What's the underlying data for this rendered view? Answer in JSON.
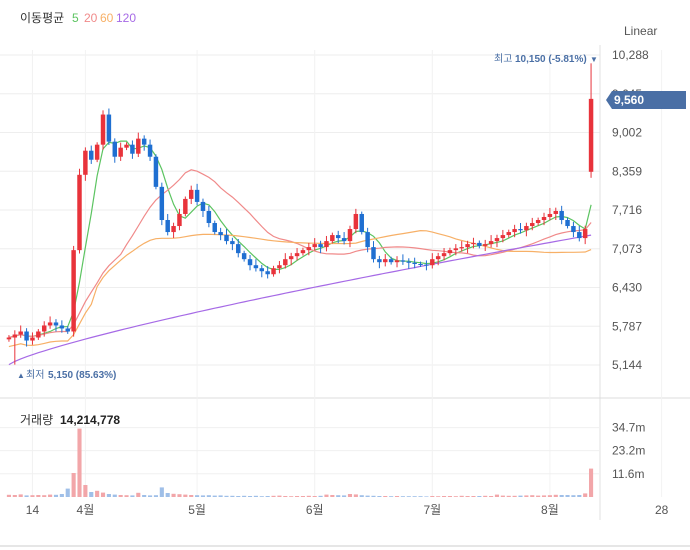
{
  "header": {
    "ma_title": "이동평균",
    "ma_periods": [
      "5",
      "20",
      "60",
      "120"
    ],
    "scale_label": "Linear"
  },
  "colors": {
    "up": "#e8333b",
    "down": "#1f6fd1",
    "ma5": "#5cc461",
    "ma20": "#f08a8a",
    "ma60": "#f7b067",
    "ma120": "#a66ae6",
    "badge": "#4a6fa5",
    "marker": "#4a6fa5"
  },
  "price_markers": {
    "high_label": "최고",
    "high_value": "10,150 (-5.81%)",
    "high_arrow": "▼",
    "low_label": "최저",
    "low_value": "5,150 (85.63%)",
    "low_arrow": "▲",
    "current": "9,560"
  },
  "volume_header": {
    "label": "거래량",
    "value": "14,214,778"
  },
  "chart_data": {
    "type": "candlestick",
    "price_axis": {
      "min": 5144,
      "max": 10288,
      "ticks": [
        "10,288",
        "9,645",
        "9,002",
        "8,359",
        "7,716",
        "7,073",
        "6,430",
        "5,787",
        "5,144"
      ]
    },
    "volume_axis": {
      "ticks": [
        "34.7m",
        "23.2m",
        "11.6m"
      ],
      "tick_values": [
        34.7,
        23.2,
        11.6
      ],
      "max": 45
    },
    "x_ticks": [
      {
        "label": "14",
        "index": 4
      },
      {
        "label": "4월",
        "index": 13
      },
      {
        "label": "5월",
        "index": 32
      },
      {
        "label": "6월",
        "index": 52
      },
      {
        "label": "7월",
        "index": 72
      },
      {
        "label": "8월",
        "index": 92
      },
      {
        "label": "28",
        "index": 111
      }
    ],
    "high": 10150,
    "low": 5150,
    "last": 9560,
    "closes": [
      5600,
      5650,
      5700,
      5550,
      5600,
      5700,
      5800,
      5850,
      5800,
      5750,
      5700,
      7050,
      8300,
      8700,
      8550,
      8800,
      9300,
      8850,
      8600,
      8750,
      8800,
      8650,
      8900,
      8800,
      8600,
      8100,
      7550,
      7350,
      7450,
      7650,
      7900,
      8050,
      7850,
      7700,
      7500,
      7350,
      7300,
      7200,
      7150,
      7000,
      6900,
      6800,
      6750,
      6700,
      6650,
      6750,
      6800,
      6900,
      6950,
      7000,
      7050,
      7100,
      7150,
      7100,
      7200,
      7300,
      7250,
      7200,
      7400,
      7650,
      7350,
      7100,
      6900,
      6850,
      6900,
      6850,
      6880,
      6860,
      6840,
      6820,
      6810,
      6800,
      6900,
      6950,
      7000,
      7050,
      7080,
      7100,
      7150,
      7170,
      7120,
      7150,
      7200,
      7250,
      7300,
      7350,
      7400,
      7380,
      7450,
      7500,
      7550,
      7600,
      7650,
      7700,
      7550,
      7450,
      7350,
      7250,
      7400,
      9560
    ],
    "volumes": [
      1.1,
      1.0,
      1.3,
      0.8,
      0.9,
      1.0,
      0.9,
      1.2,
      1.1,
      1.5,
      4.2,
      12.0,
      34.2,
      6.0,
      2.5,
      3.1,
      2.2,
      1.5,
      1.2,
      1.0,
      0.9,
      0.8,
      2.1,
      1.0,
      0.8,
      0.9,
      4.8,
      2.0,
      1.6,
      1.4,
      1.2,
      1.0,
      0.9,
      0.8,
      0.9,
      0.7,
      0.8,
      0.6,
      0.6,
      0.5,
      0.6,
      0.5,
      0.6,
      0.4,
      0.5,
      0.6,
      0.7,
      0.5,
      0.4,
      0.5,
      0.5,
      0.6,
      0.5,
      0.6,
      1.2,
      1.0,
      0.9,
      0.8,
      1.5,
      1.3,
      0.9,
      0.7,
      0.6,
      0.5,
      0.5,
      0.4,
      0.5,
      0.4,
      0.4,
      0.4,
      0.4,
      0.3,
      0.5,
      0.4,
      0.5,
      0.5,
      0.4,
      0.6,
      0.5,
      0.5,
      0.5,
      0.6,
      0.5,
      1.2,
      0.7,
      0.6,
      0.6,
      0.7,
      0.8,
      0.9,
      0.7,
      0.8,
      0.9,
      1.1,
      1.0,
      1.0,
      0.9,
      1.0,
      1.8,
      14.2
    ]
  }
}
